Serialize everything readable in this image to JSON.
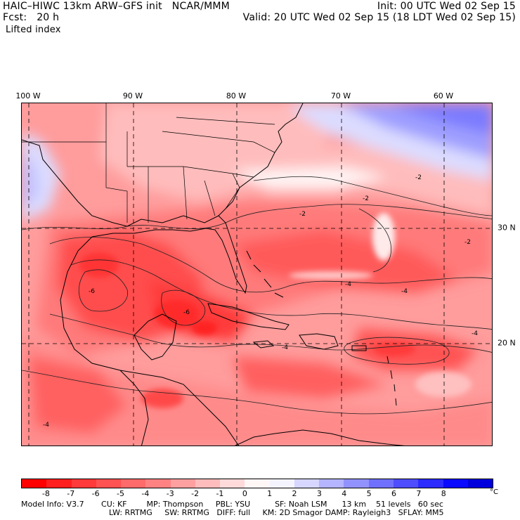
{
  "header": {
    "line1_left": "HAIC–HIWC 13km ARW–GFS init   NCAR/MMM",
    "line2_left": "Fcst:   20 h",
    "field_name": "Lifted index",
    "line1_right": "Init: 00 UTC Wed 02 Sep 15",
    "line2_right": "Valid: 20 UTC Wed 02 Sep 15 (18 LDT Wed 02 Sep 15)"
  },
  "map": {
    "lon_labels": [
      "100 W",
      "90 W",
      "80 W",
      "70 W",
      "60 W"
    ],
    "lat_labels": [
      "30 N",
      "20 N"
    ],
    "contour_labels": [
      "-2",
      "-2",
      "-2",
      "-2",
      "-4",
      "-4",
      "-4",
      "-4",
      "-6",
      "-6",
      "-4"
    ]
  },
  "colorbar": {
    "unit": "°C",
    "tick_labels": [
      "-8",
      "-7",
      "-6",
      "-5",
      "-4",
      "-3",
      "-2",
      "-1",
      "0",
      "1",
      "2",
      "3",
      "4",
      "5",
      "6",
      "7",
      "8"
    ],
    "colors": [
      "#ff0000",
      "#ff1f1f",
      "#ff3a3a",
      "#ff5252",
      "#ff6a6a",
      "#ff8282",
      "#ffa0a0",
      "#ffbcbc",
      "#ffdada",
      "#fff6f6",
      "#f4f4ff",
      "#d6d6ff",
      "#b4b4ff",
      "#9292ff",
      "#7070ff",
      "#4e4eff",
      "#2c2cff",
      "#0a0aff",
      "#0000dd"
    ]
  },
  "footer": {
    "line1": "Model Info: V3.7       CU: KF        MP: Thompson     PBL: YSU          SF: Noah LSM      13 km    51 levels   60 sec",
    "line2": "LW: RRTMG     SW: RRTMG   DIFF: full     KM: 2D Smagor DAMP: Rayleigh3   SFLAY: MM5"
  }
}
